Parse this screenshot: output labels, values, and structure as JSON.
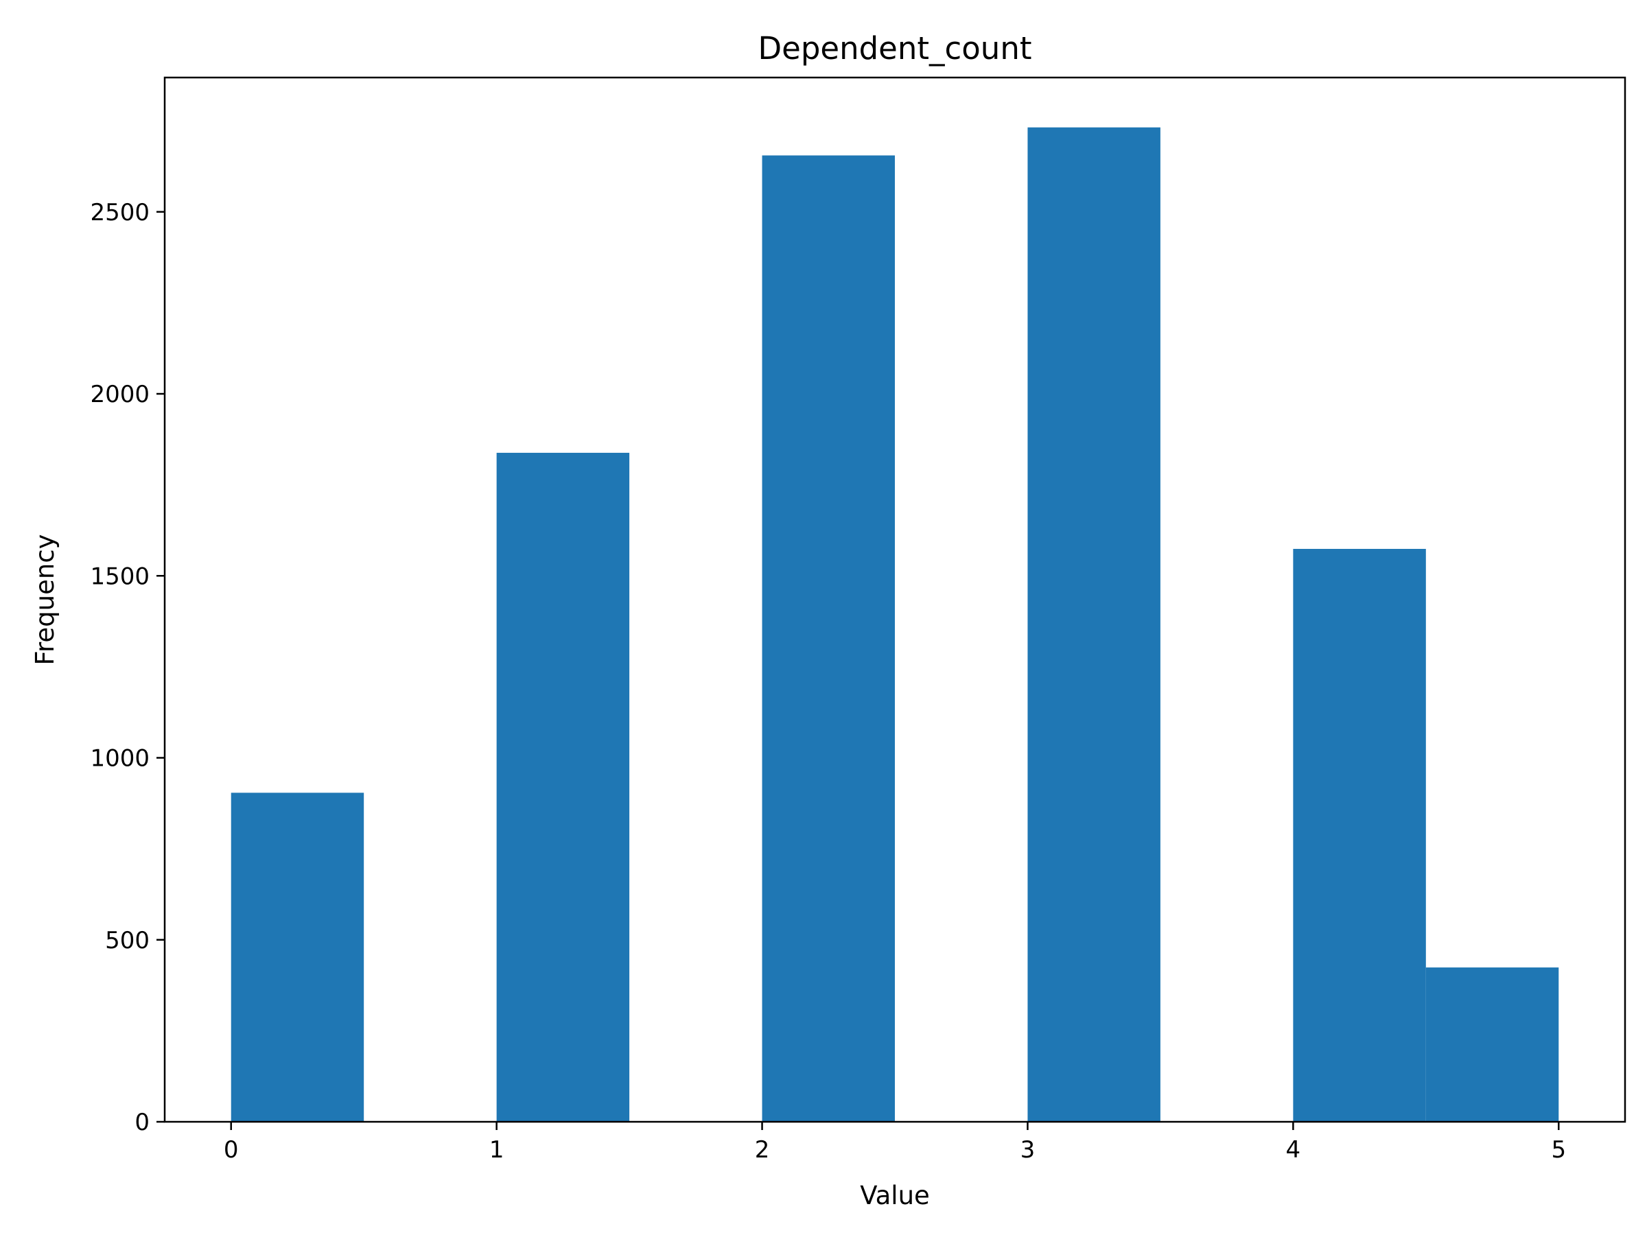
{
  "chart_data": {
    "type": "bar",
    "title": "Dependent_count",
    "xlabel": "Value",
    "ylabel": "Frequency",
    "bins": [
      {
        "x0": 0.0,
        "x1": 0.5,
        "value": 904
      },
      {
        "x0": 0.5,
        "x1": 1.0,
        "value": 0
      },
      {
        "x0": 1.0,
        "x1": 1.5,
        "value": 1838
      },
      {
        "x0": 1.5,
        "x1": 2.0,
        "value": 0
      },
      {
        "x0": 2.0,
        "x1": 2.5,
        "value": 2655
      },
      {
        "x0": 2.5,
        "x1": 3.0,
        "value": 0
      },
      {
        "x0": 3.0,
        "x1": 3.5,
        "value": 2732
      },
      {
        "x0": 3.5,
        "x1": 4.0,
        "value": 0
      },
      {
        "x0": 4.0,
        "x1": 4.5,
        "value": 1574
      },
      {
        "x0": 4.5,
        "x1": 5.0,
        "value": 424
      }
    ],
    "xlim": [
      -0.25,
      5.25
    ],
    "ylim": [
      0,
      2869
    ],
    "xticks": [
      0,
      1,
      2,
      3,
      4,
      5
    ],
    "yticks": [
      0,
      500,
      1000,
      1500,
      2000,
      2500
    ],
    "grid": false,
    "legend": "none",
    "bar_color": "#1f77b4"
  }
}
